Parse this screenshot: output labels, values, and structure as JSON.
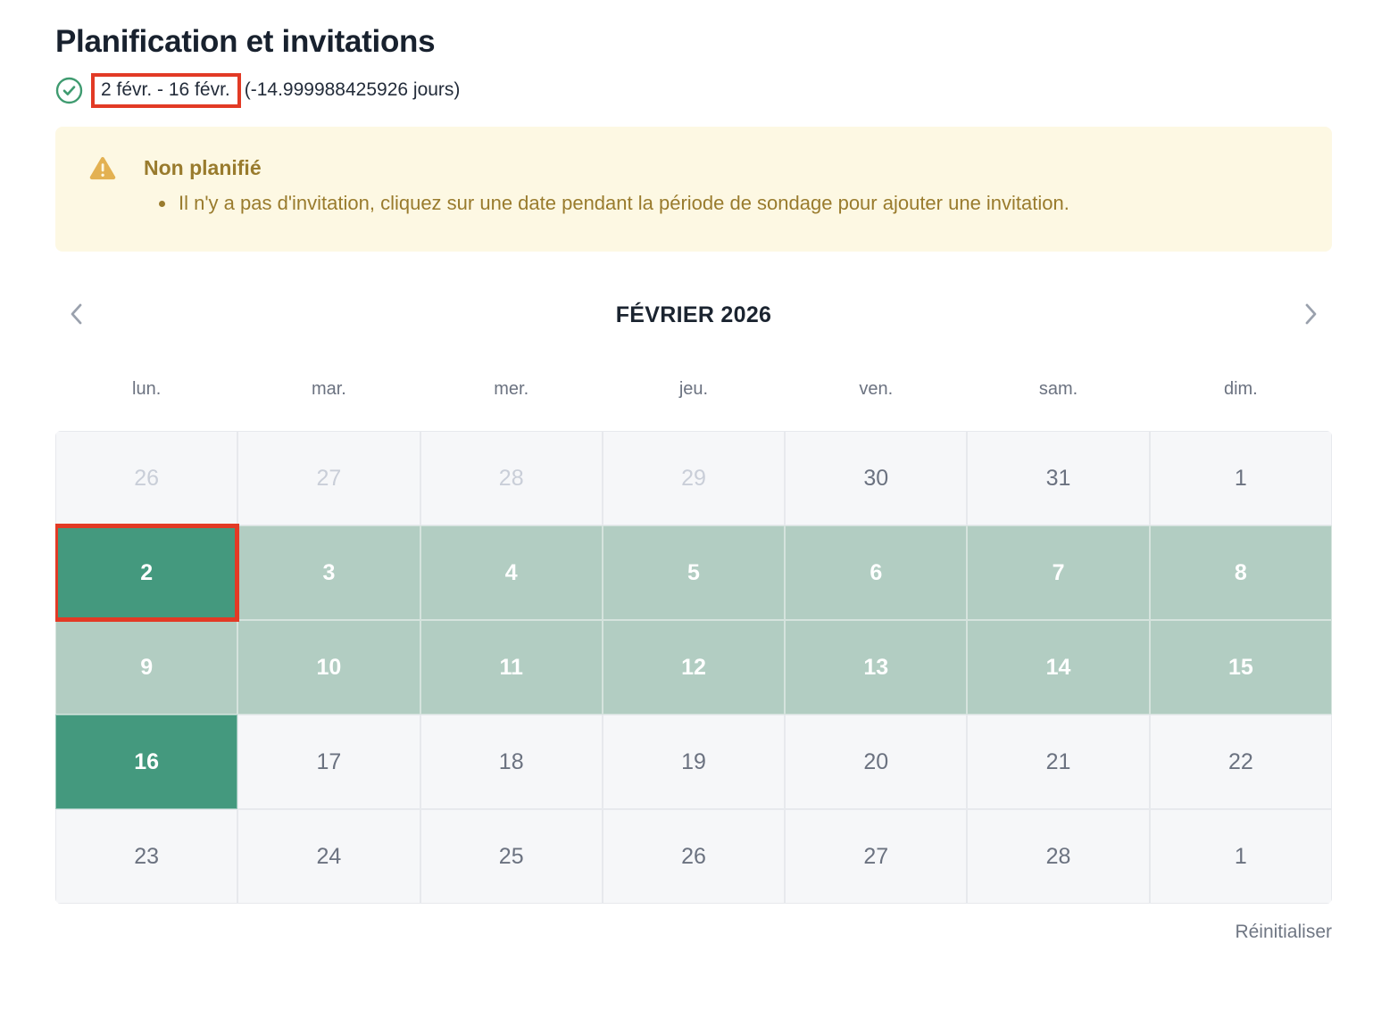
{
  "header": {
    "title": "Planification et invitations",
    "date_range": "2 févr. - 16 févr.",
    "offset_text": "(-14.999988425926 jours)"
  },
  "warning": {
    "title": "Non planifié",
    "items": [
      "Il n'y a pas d'invitation, cliquez sur une date pendant la période de sondage pour ajouter une invitation."
    ]
  },
  "calendar": {
    "title": "FÉVRIER 2026",
    "weekdays": [
      "lun.",
      "mar.",
      "mer.",
      "jeu.",
      "ven.",
      "sam.",
      "dim."
    ],
    "weeks": [
      [
        {
          "day": "26",
          "state": "muted"
        },
        {
          "day": "27",
          "state": "muted"
        },
        {
          "day": "28",
          "state": "muted"
        },
        {
          "day": "29",
          "state": "muted"
        },
        {
          "day": "30",
          "state": "normal"
        },
        {
          "day": "31",
          "state": "normal"
        },
        {
          "day": "1",
          "state": "normal"
        }
      ],
      [
        {
          "day": "2",
          "state": "selected",
          "annotated": true
        },
        {
          "day": "3",
          "state": "range"
        },
        {
          "day": "4",
          "state": "range"
        },
        {
          "day": "5",
          "state": "range"
        },
        {
          "day": "6",
          "state": "range"
        },
        {
          "day": "7",
          "state": "range"
        },
        {
          "day": "8",
          "state": "range"
        }
      ],
      [
        {
          "day": "9",
          "state": "range"
        },
        {
          "day": "10",
          "state": "range"
        },
        {
          "day": "11",
          "state": "range"
        },
        {
          "day": "12",
          "state": "range"
        },
        {
          "day": "13",
          "state": "range"
        },
        {
          "day": "14",
          "state": "range"
        },
        {
          "day": "15",
          "state": "range"
        }
      ],
      [
        {
          "day": "16",
          "state": "selected"
        },
        {
          "day": "17",
          "state": "normal"
        },
        {
          "day": "18",
          "state": "normal"
        },
        {
          "day": "19",
          "state": "normal"
        },
        {
          "day": "20",
          "state": "normal"
        },
        {
          "day": "21",
          "state": "normal"
        },
        {
          "day": "22",
          "state": "normal"
        }
      ],
      [
        {
          "day": "23",
          "state": "normal"
        },
        {
          "day": "24",
          "state": "normal"
        },
        {
          "day": "25",
          "state": "normal"
        },
        {
          "day": "26",
          "state": "normal"
        },
        {
          "day": "27",
          "state": "normal"
        },
        {
          "day": "28",
          "state": "normal"
        },
        {
          "day": "1",
          "state": "normal"
        }
      ]
    ],
    "reset_label": "Réinitialiser"
  },
  "icons": {
    "status": "check-circle-icon",
    "warning": "warning-triangle-icon",
    "prev": "chevron-left-icon",
    "next": "chevron-right-icon"
  },
  "colors": {
    "selected_green": "#44997e",
    "range_green": "#b2cdc2",
    "annotation_red": "#e23a25",
    "warning_bg": "#fdf8e3",
    "warning_text": "#997b2d",
    "warning_icon": "#e3b152",
    "check_green": "#3f9b70"
  }
}
